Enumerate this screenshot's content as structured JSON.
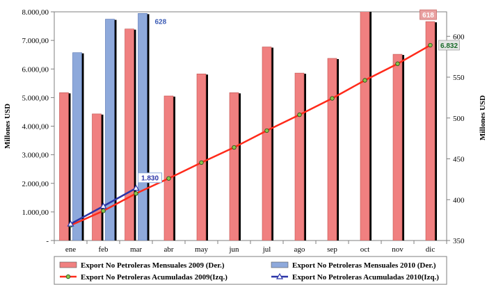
{
  "chart_data": {
    "type": "bar",
    "categories": [
      "ene",
      "feb",
      "mar",
      "abr",
      "may",
      "jun",
      "jul",
      "ago",
      "sep",
      "oct",
      "nov",
      "dic"
    ],
    "title": "",
    "y_left": {
      "label": "Millones USD",
      "range": [
        0,
        8000
      ],
      "ticks": [
        0,
        1000,
        2000,
        3000,
        4000,
        5000,
        6000,
        7000,
        8000
      ],
      "tick_labels": [
        "-",
        "1.000,00",
        "2.000,00",
        "3.000,00",
        "4.000,00",
        "5.000,00",
        "6.000,00",
        "7.000,00",
        "8.000,00"
      ]
    },
    "y_right": {
      "label": "Millones USD",
      "range": [
        350,
        630
      ],
      "ticks": [
        350,
        400,
        450,
        500,
        550,
        600
      ],
      "tick_labels": [
        "350",
        "400",
        "450",
        "500",
        "550",
        "600"
      ]
    },
    "grid": false,
    "legend_position": "bottom",
    "series": [
      {
        "name": "Export No Petroleras Mensuales 2009 (Der.)",
        "type": "bar",
        "axis": "right",
        "color": "#f08080",
        "values": [
          531,
          505,
          609,
          527,
          554,
          531,
          587,
          555,
          573,
          633,
          578,
          618
        ]
      },
      {
        "name": "Export No Petroleras Mensuales 2010 (Der.)",
        "type": "bar",
        "axis": "right",
        "color": "#8ea9db",
        "values": [
          580,
          621,
          628,
          null,
          null,
          null,
          null,
          null,
          null,
          null,
          null,
          null
        ]
      },
      {
        "name": "Export No Petroleras Acumuladas 2009(Izq.)",
        "type": "line",
        "axis": "left",
        "color": "#ff2a1a",
        "marker": "circle",
        "values": [
          531,
          1036,
          1645,
          2172,
          2726,
          3257,
          3844,
          4399,
          4972,
          5605,
          6183,
          6832
        ]
      },
      {
        "name": "Export No Petroleras Acumuladas 2010(Izq.)",
        "type": "line",
        "axis": "left",
        "color": "#2b35a8",
        "marker": "triangle",
        "values": [
          580,
          1201,
          1830,
          null,
          null,
          null,
          null,
          null,
          null,
          null,
          null,
          null
        ]
      }
    ],
    "annotations": [
      {
        "text": "628",
        "series": 1,
        "index": 2,
        "color": "#3b5bb5"
      },
      {
        "text": "1.830",
        "series": 3,
        "index": 2,
        "color": "#2b35a8"
      },
      {
        "text": "618",
        "series": 0,
        "index": 11,
        "color": "#ffffff"
      },
      {
        "text": "6.832",
        "series": 2,
        "index": 11,
        "color": "#1a6b2a"
      }
    ]
  }
}
